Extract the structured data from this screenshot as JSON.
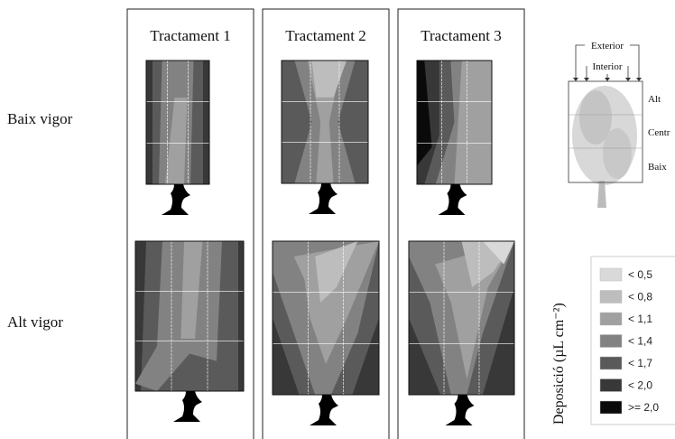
{
  "column_titles": [
    "Tractament 1",
    "Tractament 2",
    "Tractament 3"
  ],
  "row_labels": [
    "Baix vigor",
    "Alt vigor"
  ],
  "inset": {
    "outer_label": "Exterior",
    "inner_label": "Interior",
    "levels": [
      "Alt",
      "Centr",
      "Baix"
    ]
  },
  "legend": {
    "title": "Deposició (µL cm⁻²)",
    "items": [
      "< 0,5",
      "< 0,8",
      "< 1,1",
      "< 1,4",
      "< 1,7",
      "< 2,0",
      ">= 2,0"
    ]
  }
}
